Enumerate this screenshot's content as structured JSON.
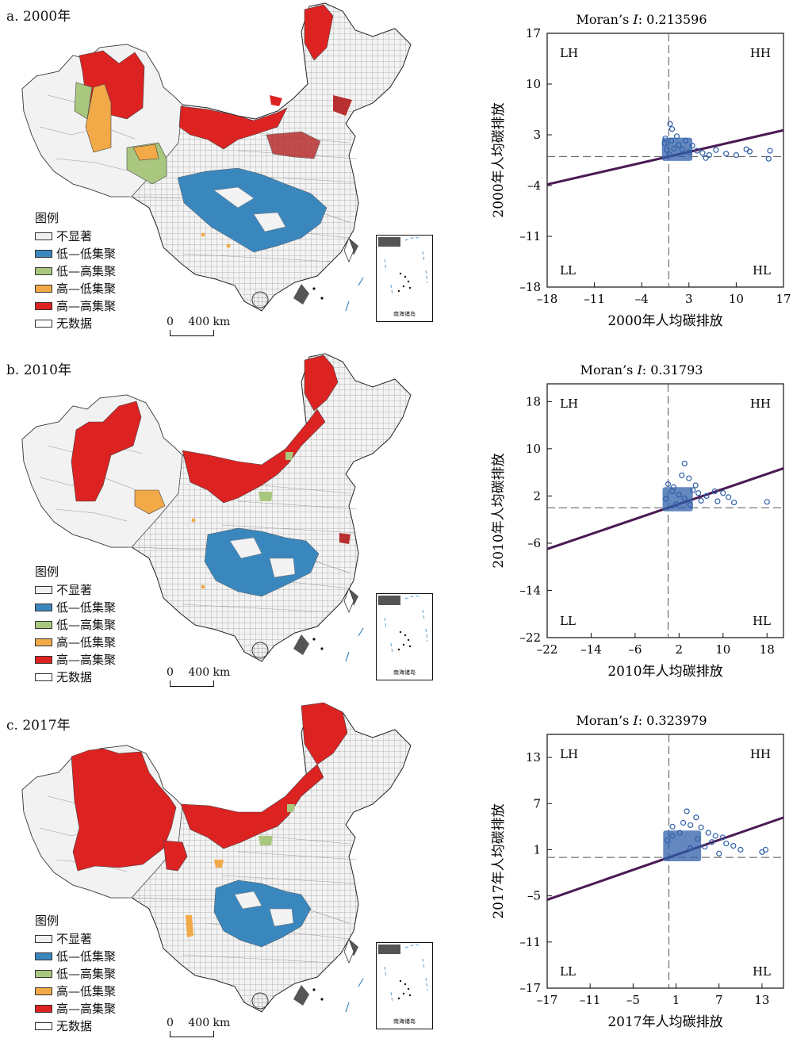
{
  "panels": [
    {
      "label": "a. 2000年",
      "legend": {
        "title": "图例",
        "items": [
          {
            "label": "不显著",
            "color": "#f0f0f0"
          },
          {
            "label": "低—低集聚",
            "color": "#3a87bd"
          },
          {
            "label": "低—高集聚",
            "color": "#a9c77e"
          },
          {
            "label": "高—低集聚",
            "color": "#f2a948"
          },
          {
            "label": "高—高集聚",
            "color": "#dd2222"
          },
          {
            "label": "无数据",
            "color": "#ffffff"
          }
        ]
      },
      "scale": {
        "zero": "0",
        "dist": "400 km"
      },
      "inset_label": "南海诸岛"
    },
    {
      "label": "b. 2010年",
      "legend": {
        "title": "图例",
        "items": [
          {
            "label": "不显著",
            "color": "#f0f0f0"
          },
          {
            "label": "低—低集聚",
            "color": "#3a87bd"
          },
          {
            "label": "低—高集聚",
            "color": "#a9c77e"
          },
          {
            "label": "高—低集聚",
            "color": "#f2a948"
          },
          {
            "label": "高—高集聚",
            "color": "#dd2222"
          },
          {
            "label": "无数据",
            "color": "#ffffff"
          }
        ]
      },
      "scale": {
        "zero": "0",
        "dist": "400 km"
      },
      "inset_label": "南海诸岛"
    },
    {
      "label": "c. 2017年",
      "legend": {
        "title": "图例",
        "items": [
          {
            "label": "不显著",
            "color": "#f0f0f0"
          },
          {
            "label": "低—低集聚",
            "color": "#3a87bd"
          },
          {
            "label": "低—高集聚",
            "color": "#a9c77e"
          },
          {
            "label": "高—低集聚",
            "color": "#f2a948"
          },
          {
            "label": "高—高集聚",
            "color": "#dd2222"
          },
          {
            "label": "无数据",
            "color": "#ffffff"
          }
        ]
      },
      "scale": {
        "zero": "0",
        "dist": "400 km"
      },
      "inset_label": "南海诸岛"
    }
  ],
  "chart_data": [
    {
      "type": "scatter",
      "title": "Moran’s I: 0.213596",
      "title_prefix": "Moran’s ",
      "title_italic": "I",
      "title_value": ": 0.213596",
      "xlabel": "2000年人均碳排放",
      "ylabel": "2000年人均碳排放",
      "xlim": [
        -18,
        17
      ],
      "ylim": [
        -18,
        17
      ],
      "xticks": [
        -18,
        -11,
        -4,
        3,
        10,
        17
      ],
      "yticks": [
        -18,
        -11,
        -4,
        3,
        10,
        17
      ],
      "quadrants": [
        "LH",
        "HH",
        "LL",
        "HL"
      ],
      "regression": {
        "slope": 0.2136,
        "intercept": 0
      },
      "points": [
        [
          0.2,
          4.5
        ],
        [
          0.5,
          3.8
        ],
        [
          -0.5,
          2.5
        ],
        [
          1.2,
          2.8
        ],
        [
          2.5,
          2.2
        ],
        [
          3.5,
          1.5
        ],
        [
          4.2,
          0.8
        ],
        [
          5,
          0.5
        ],
        [
          6,
          0.2
        ],
        [
          7,
          0.9
        ],
        [
          8.5,
          0.4
        ],
        [
          11.5,
          1.0
        ],
        [
          12,
          0.7
        ],
        [
          15,
          0.8
        ],
        [
          14.8,
          -0.3
        ],
        [
          10,
          0.2
        ],
        [
          5.5,
          -0.2
        ],
        [
          1.5,
          1.6
        ],
        [
          0.8,
          1.1
        ],
        [
          -0.3,
          0.9
        ],
        [
          0.1,
          0.3
        ],
        [
          -0.6,
          1.8
        ],
        [
          0.4,
          2.2
        ],
        [
          2,
          1.0
        ],
        [
          3,
          0.6
        ]
      ],
      "cluster": {
        "xmin": -1,
        "xmax": 3.5,
        "ymin": -0.6,
        "ymax": 2.6
      }
    },
    {
      "type": "scatter",
      "title": "Moran’s I: 0.31793",
      "title_prefix": "Moran’s ",
      "title_italic": "I",
      "title_value": ": 0.31793",
      "xlabel": "2010年人均碳排放",
      "ylabel": "2010年人均碳排放",
      "xlim": [
        -22,
        21
      ],
      "ylim": [
        -22,
        21
      ],
      "xticks": [
        -22,
        -14,
        -6,
        2,
        10,
        18
      ],
      "yticks": [
        -22,
        -14,
        -6,
        2,
        10,
        18
      ],
      "quadrants": [
        "LH",
        "HH",
        "LL",
        "HL"
      ],
      "regression": {
        "slope": 0.3179,
        "intercept": 0
      },
      "points": [
        [
          3,
          7.5
        ],
        [
          2.5,
          5.5
        ],
        [
          3.8,
          5.0
        ],
        [
          0,
          4
        ],
        [
          1,
          3.5
        ],
        [
          4.5,
          3
        ],
        [
          5.5,
          2.5
        ],
        [
          7,
          2
        ],
        [
          8.5,
          2.8
        ],
        [
          10,
          2.5
        ],
        [
          11,
          1.8
        ],
        [
          12,
          0.9
        ],
        [
          18,
          1.0
        ],
        [
          6,
          1.2
        ],
        [
          4,
          0.5
        ],
        [
          2,
          2.2
        ],
        [
          0.8,
          2.8
        ],
        [
          -0.4,
          1.5
        ],
        [
          1.5,
          0.6
        ],
        [
          3,
          1.6
        ],
        [
          9,
          1.1
        ],
        [
          5,
          3.8
        ]
      ],
      "cluster": {
        "xmin": -1,
        "xmax": 4.5,
        "ymin": -0.6,
        "ymax": 3.5
      }
    },
    {
      "type": "scatter",
      "title": "Moran’s I: 0.323979",
      "title_prefix": "Moran’s ",
      "title_italic": "I",
      "title_value": ": 0.323979",
      "xlabel": "2017年人均碳排放",
      "ylabel": "2017年人均碳排放",
      "xlim": [
        -17,
        16
      ],
      "ylim": [
        -17,
        16
      ],
      "xticks": [
        -17,
        -11,
        -5,
        1,
        7,
        13
      ],
      "yticks": [
        -17,
        -11,
        -5,
        1,
        7,
        13
      ],
      "quadrants": [
        "LH",
        "HH",
        "LL",
        "HL"
      ],
      "regression": {
        "slope": 0.324,
        "intercept": 0
      },
      "points": [
        [
          2.5,
          6
        ],
        [
          3.8,
          5.2
        ],
        [
          2,
          4.5
        ],
        [
          0.5,
          4.0
        ],
        [
          3,
          4.2
        ],
        [
          4.5,
          3.9
        ],
        [
          5.5,
          3.2
        ],
        [
          6.5,
          2.8
        ],
        [
          7.5,
          2.6
        ],
        [
          8,
          1.8
        ],
        [
          10,
          1.0
        ],
        [
          13.5,
          1.0
        ],
        [
          13,
          0.7
        ],
        [
          5,
          1.4
        ],
        [
          4,
          2.4
        ],
        [
          6,
          2
        ],
        [
          3,
          1.2
        ],
        [
          1.5,
          3.2
        ],
        [
          -0.2,
          2.2
        ],
        [
          0.5,
          2.8
        ],
        [
          7,
          0.5
        ],
        [
          9,
          1.5
        ]
      ],
      "cluster": {
        "xmin": -0.8,
        "xmax": 4.5,
        "ymin": -0.5,
        "ymax": 3.5
      }
    }
  ]
}
